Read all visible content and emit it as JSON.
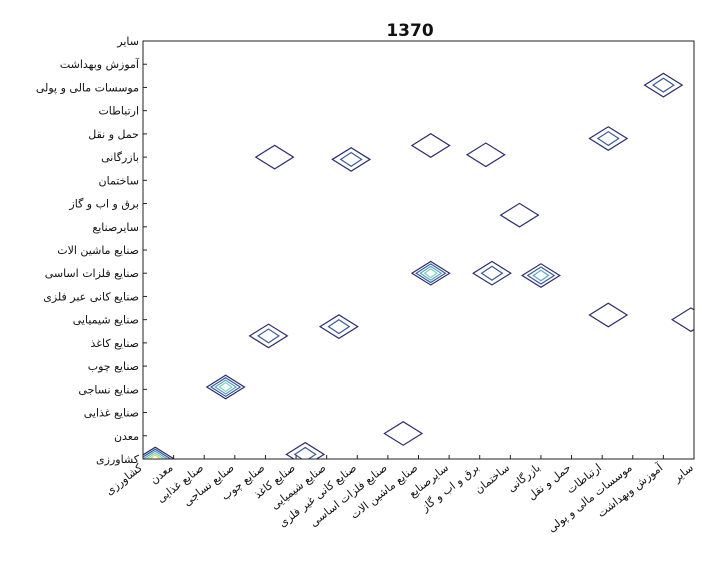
{
  "chart_data": {
    "type": "contour",
    "title": "1370",
    "categories": [
      "کشاورزی",
      "معدن",
      "صنایع غذایی",
      "صنایع نساجی",
      "صنایع چوب",
      "صنایع کاغذ",
      "صنایع شیمیایی",
      "صنایع کانی غیر فلزی",
      "صنایع فلزات اساسی",
      "صنایع ماشین الات",
      "سایرصنایع",
      "برق و اب و گاز",
      "ساختمان",
      "بازرگانی",
      "حمل و نقل",
      "ارتباطات",
      "موسسات مالی و پولی",
      "آموزش وبهداشت",
      "سایر"
    ],
    "x_tick_labels": [
      "کشاورزی",
      "معدن",
      "صنایع غذایی",
      "صنایع نساجی",
      "صنایع چوب",
      "صنایع کاغذ",
      "صنایع شیمیایی",
      "صنایع کانی غیر فلزی",
      "صنایع فلزات اساسی",
      "صنایع ماشین الات",
      "سایرصنایع",
      "برق و اب و گاز",
      "ساختمان",
      "بازرگانی",
      "حمل و نقل",
      "ارتباطات",
      "موسسات مالی و پولی",
      "آموزش وبهداشت",
      "سایر"
    ],
    "y_tick_labels": [
      "کشاورزی",
      "معدن",
      "صنایع غذایی",
      "صنایع نساجی",
      "صنایع چوب",
      "صنایع کاغذ",
      "صنایع شیمیایی",
      "صنایع کانی عبر فلزی",
      "صنایع فلزات اساسی",
      "صنایع ماشین الات",
      "سایرصنایع",
      "برق و اب و گاز",
      "ساختمان",
      "بازرگانی",
      "حمل و نقل",
      "ارتباطات",
      "موسسات مالی و پولی",
      "آموزش وبهداشت",
      "سایر"
    ],
    "xlim": [
      1,
      19
    ],
    "ylim": [
      1,
      19
    ],
    "grid": false,
    "legend": "none",
    "level_colors": [
      "#2b2c6e",
      "#3a5a9a",
      "#5aa6c8",
      "#7fd0b8",
      "#d8dc4a"
    ],
    "peaks": [
      {
        "x": 1.4,
        "y": 1.0,
        "value": 5
      },
      {
        "x": 3.7,
        "y": 4.1,
        "value": 4
      },
      {
        "x": 5.1,
        "y": 6.3,
        "value": 2
      },
      {
        "x": 6.3,
        "y": 1.2,
        "value": 2
      },
      {
        "x": 7.4,
        "y": 6.7,
        "value": 2
      },
      {
        "x": 10.4,
        "y": 9.0,
        "value": 4
      },
      {
        "x": 12.4,
        "y": 9.0,
        "value": 2
      },
      {
        "x": 14.0,
        "y": 8.9,
        "value": 3
      },
      {
        "x": 13.3,
        "y": 11.5,
        "value": 1
      },
      {
        "x": 16.2,
        "y": 14.8,
        "value": 2
      },
      {
        "x": 16.2,
        "y": 7.2,
        "value": 1
      },
      {
        "x": 18.0,
        "y": 17.1,
        "value": 2
      },
      {
        "x": 18.9,
        "y": 7.0,
        "value": 1
      },
      {
        "x": 12.2,
        "y": 14.1,
        "value": 1
      },
      {
        "x": 10.4,
        "y": 14.5,
        "value": 1
      },
      {
        "x": 7.8,
        "y": 13.9,
        "value": 2
      },
      {
        "x": 5.3,
        "y": 14.0,
        "value": 1
      },
      {
        "x": 9.5,
        "y": 2.1,
        "value": 1
      }
    ]
  }
}
